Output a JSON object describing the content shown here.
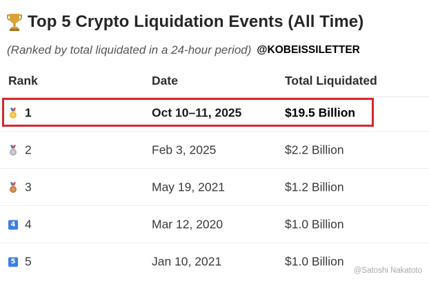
{
  "header": {
    "title": "Top 5 Crypto Liquidation Events (All Time)",
    "subtitle": "(Ranked by total liquidated in a 24-hour period)",
    "handle": "@KOBEISSILETTER",
    "trophy_icon": "trophy-icon"
  },
  "table": {
    "columns": [
      "Rank",
      "Date",
      "Total Liquidated"
    ],
    "rows": [
      {
        "icon": "gold-medal-icon",
        "rank": "1",
        "date": "Oct 10–11, 2025",
        "total": "$19.5 Billion"
      },
      {
        "icon": "silver-medal-icon",
        "rank": "2",
        "date": "Feb 3, 2025",
        "total": "$2.2 Billion"
      },
      {
        "icon": "bronze-medal-icon",
        "rank": "3",
        "date": "May 19, 2021",
        "total": "$1.2 Billion"
      },
      {
        "icon": "keycap-4-icon",
        "icon_text": "4",
        "rank": "4",
        "date": "Mar 12, 2020",
        "total": "$1.0 Billion"
      },
      {
        "icon": "keycap-5-icon",
        "icon_text": "5",
        "rank": "5",
        "date": "Jan 10, 2021",
        "total": "$1.0 Billion"
      }
    ]
  },
  "highlight": {
    "color": "#d7252c",
    "row": 1
  },
  "watermark": "@Satoshi Nakatoto"
}
